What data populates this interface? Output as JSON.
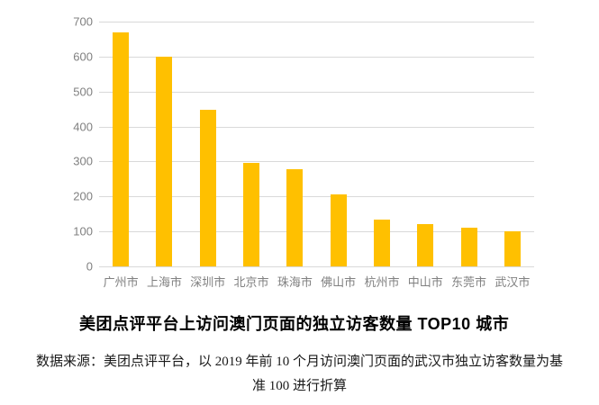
{
  "title": "美团点评平台上访问澳门页面的独立访客数量 TOP10 城市",
  "source": {
    "line1": "数据来源：美团点评平台，以 2019 年前 10 个月访问澳门页面的武汉市独立访客数量为基",
    "line2": "准 100 进行折算"
  },
  "colors": {
    "bar": "#FFC000",
    "gridline": "#D9D9D9",
    "axis_label": "#808080",
    "title_text": "#000000",
    "background": "#FFFFFF"
  },
  "chart_data": {
    "type": "bar",
    "title": "美团点评平台上访问澳门页面的独立访客数量 TOP10 城市",
    "categories": [
      "广州市",
      "上海市",
      "深圳市",
      "北京市",
      "珠海市",
      "佛山市",
      "杭州市",
      "中山市",
      "东莞市",
      "武汉市"
    ],
    "values": [
      670,
      600,
      448,
      296,
      278,
      205,
      133,
      120,
      110,
      100
    ],
    "xlabel": "",
    "ylabel": "",
    "ylim": [
      0,
      700
    ],
    "yticks": [
      0,
      100,
      200,
      300,
      400,
      500,
      600,
      700
    ],
    "grid": true,
    "legend": false,
    "note": "数据来源：美团点评平台，以 2019 年前 10 个月访问澳门页面的武汉市独立访客数量为基准 100 进行折算"
  }
}
